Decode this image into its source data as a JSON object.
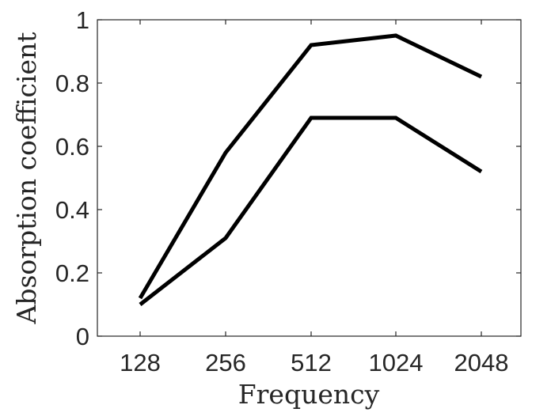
{
  "chart_data": {
    "type": "line",
    "categories": [
      "128",
      "256",
      "512",
      "1024",
      "2048"
    ],
    "series": [
      {
        "values": [
          0.12,
          0.58,
          0.92,
          0.95,
          0.82
        ],
        "color": "#000000"
      },
      {
        "values": [
          0.1,
          0.31,
          0.69,
          0.69,
          0.52
        ],
        "color": "#000000"
      }
    ],
    "xlabel": "Frequency",
    "ylabel": "Absorption coefficient",
    "ylim": [
      0,
      1
    ],
    "yticks": [
      "0",
      "0.2",
      "0.4",
      "0.6",
      "0.8",
      "1"
    ],
    "grid": false,
    "box": true
  }
}
